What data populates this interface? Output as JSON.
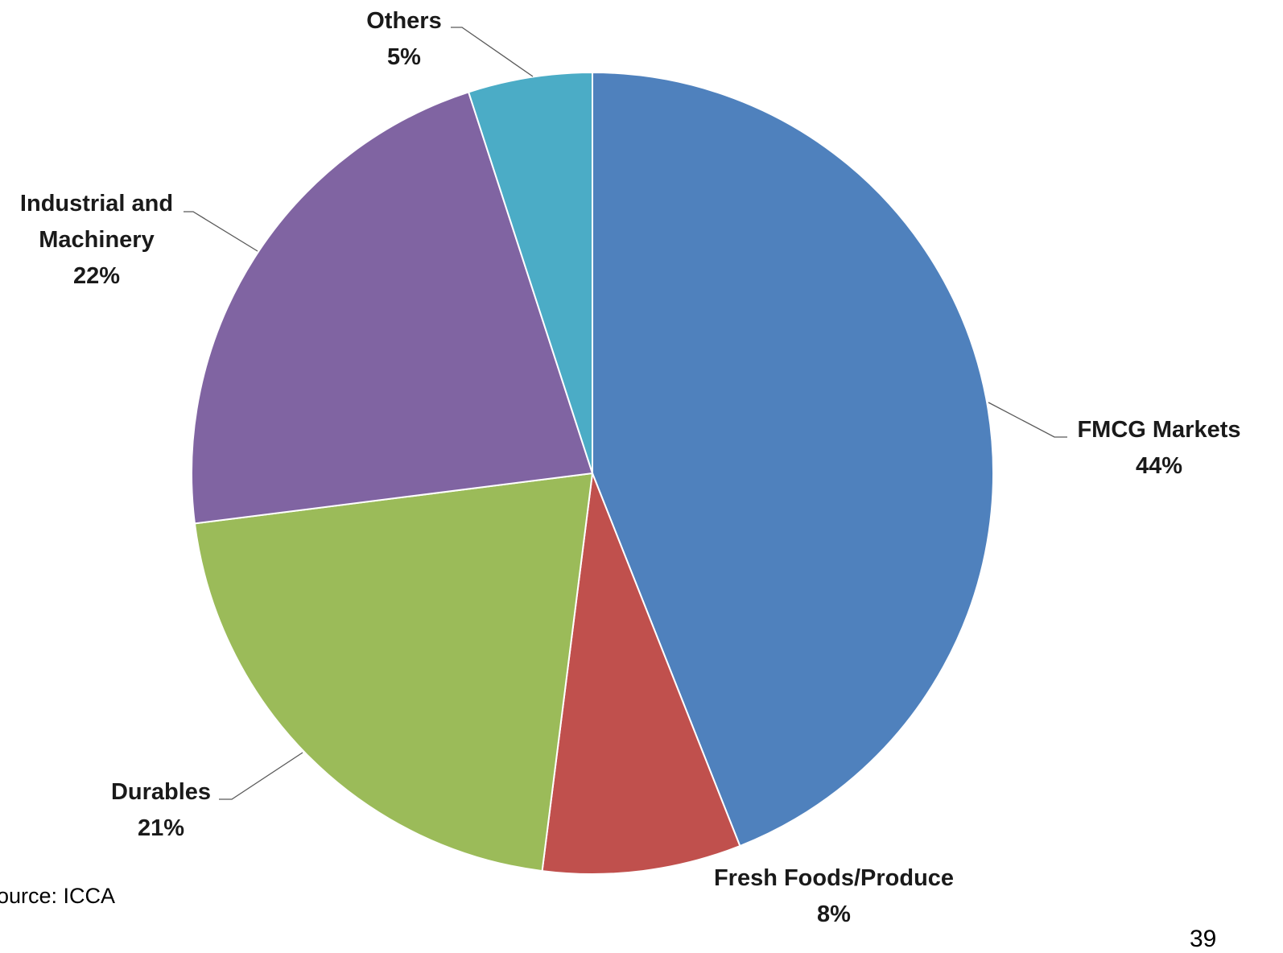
{
  "chart_data": {
    "type": "pie",
    "title": "",
    "slices": [
      {
        "label": "FMCG Markets",
        "value": 44,
        "value_label": "44%",
        "color": "#4F81BD"
      },
      {
        "label": "Fresh Foods/Produce",
        "value": 8,
        "value_label": "8%",
        "color": "#C0504D"
      },
      {
        "label": "Durables",
        "value": 21,
        "value_label": "21%",
        "color": "#9BBB59"
      },
      {
        "label": "Industrial and Machinery",
        "value": 22,
        "value_label": "22%",
        "color": "#8064A2"
      },
      {
        "label": "Others",
        "value": 5,
        "value_label": "5%",
        "color": "#4BACC6"
      }
    ],
    "start_angle_deg": 0,
    "direction": "clockwise",
    "legend": "none",
    "label_position": "outside-with-leader-lines"
  },
  "source_note": "ource: ICCA",
  "page_number": "39"
}
